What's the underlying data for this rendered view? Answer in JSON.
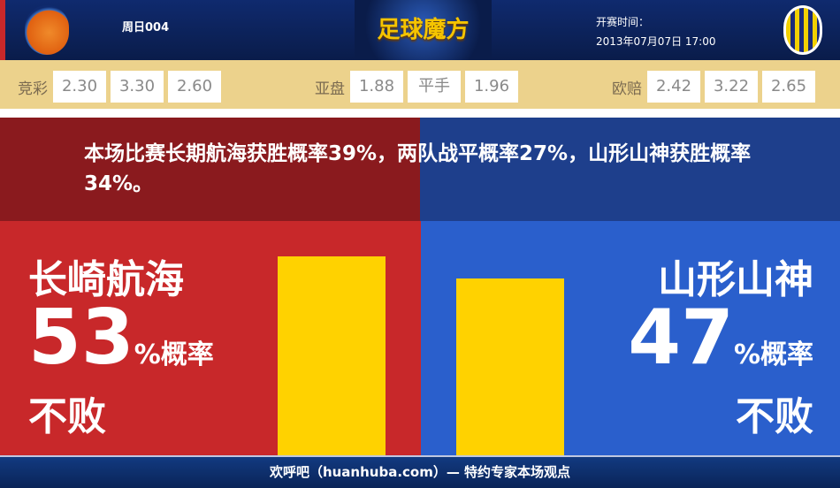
{
  "header": {
    "match_no": "周日004",
    "brand": "足球魔方",
    "time_label": "开赛时间：",
    "time_value": "2013年07月07日 17:00"
  },
  "odds": [
    {
      "label": "竞彩",
      "values": [
        "2.30",
        "3.30",
        "2.60"
      ]
    },
    {
      "label": "亚盘",
      "values": [
        "1.88",
        "平手",
        "1.96"
      ]
    },
    {
      "label": "欧赔",
      "values": [
        "2.42",
        "3.22",
        "2.65"
      ]
    }
  ],
  "summary": "本场比赛长期航海获胜概率39%，两队战平概率27%，山形山神获胜概率34%。",
  "home": {
    "name": "长崎航海",
    "percent": 53,
    "percent_text": "53",
    "unit": "%概率",
    "result": "不败"
  },
  "away": {
    "name": "山形山神",
    "percent": 47,
    "percent_text": "47",
    "unit": "%概率",
    "result": "不败"
  },
  "footer": "欢呼吧（huanhuba.com）— 特约专家本场观点",
  "colors": {
    "home": "#c8282a",
    "away": "#2a5fcc",
    "bar": "#ffd200"
  }
}
